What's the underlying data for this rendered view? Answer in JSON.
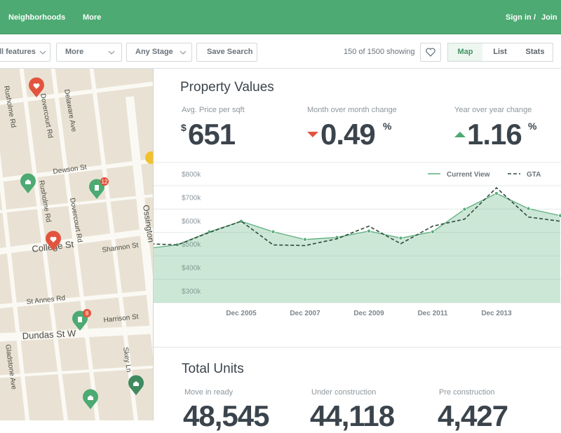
{
  "nav": {
    "links": [
      "Neighborhoods",
      "More"
    ],
    "sign_in": "Sign in",
    "separator": "/",
    "join": "Join"
  },
  "toolbar": {
    "filters": [
      "All features",
      "More",
      "Any Stage"
    ],
    "save_search": "Save Search",
    "count": "150 of 1500 showing",
    "views": [
      "Map",
      "List",
      "Stats"
    ]
  },
  "map": {
    "streets": [
      "Rusholme Rd",
      "Dovercourt Rd",
      "Delaware Ave",
      "Dewson St",
      "Rusholme Rd",
      "Dovercourt Rd",
      "College St",
      "Shannon St",
      "St Annes Rd",
      "Harrison St",
      "Dundas St W",
      "Gladstone Ave",
      "Skey Ln",
      "Ossington"
    ],
    "badges": [
      "12",
      "8"
    ]
  },
  "property_values": {
    "title": "Property Values",
    "stats": [
      {
        "label": "Avg. Price per sqft",
        "prefix": "$",
        "value": "651"
      },
      {
        "label": "Month over month change",
        "value": "0.49",
        "suffix": "%"
      },
      {
        "label": "Year over year change",
        "value": "1.16",
        "suffix": "%"
      }
    ]
  },
  "chart_data": {
    "type": "line",
    "categories": [
      null,
      null,
      null,
      "Dec 2005",
      null,
      "Dec 2007",
      null,
      "Dec 2009",
      null,
      "Dec 2011",
      null,
      "Dec 2013",
      null,
      null
    ],
    "series": [
      {
        "name": "Current View",
        "color": "#5aae7c",
        "style": "solid",
        "markers": true,
        "fill": true,
        "values": [
          531,
          547,
          603,
          648,
          603,
          570,
          579,
          606,
          576,
          603,
          699,
          767,
          702,
          672
        ]
      },
      {
        "name": "GTA",
        "color": "#2f4a3b",
        "style": "dashed",
        "markers": false,
        "fill": false,
        "values": [
          552,
          547,
          600,
          648,
          547,
          544,
          573,
          627,
          552,
          627,
          657,
          791,
          666,
          648
        ]
      }
    ],
    "ylim": [
      300,
      800
    ],
    "yticks": [
      {
        "value": 300,
        "label": "$300k"
      },
      {
        "value": 400,
        "label": "$400k"
      },
      {
        "value": 500,
        "label": "$500k"
      },
      {
        "value": 600,
        "label": "$600k"
      },
      {
        "value": 700,
        "label": "$700k"
      },
      {
        "value": 800,
        "label": "$800k"
      }
    ],
    "grid": true,
    "legend": "top-right"
  },
  "total_units": {
    "title": "Total Units",
    "stats": [
      {
        "label": "Move in ready",
        "value": "48,545"
      },
      {
        "label": "Under construction",
        "value": "44,118"
      },
      {
        "label": "Pre construction",
        "value": "4,427"
      }
    ]
  }
}
